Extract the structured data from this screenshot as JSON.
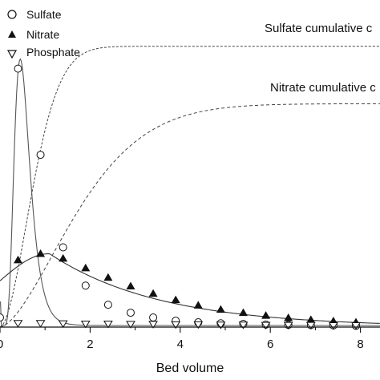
{
  "chart_data": {
    "type": "scatter",
    "xlabel": "Bed volume",
    "ylabel": "",
    "xlim": [
      0,
      8.5
    ],
    "ylim": [
      0,
      1.0
    ],
    "grid": false,
    "x_ticks": [
      "0",
      "2",
      "4",
      "6",
      "8"
    ],
    "legend_position": "top-left",
    "series": [
      {
        "name": "Sulfate",
        "marker": "open-circle",
        "x": [
          0.0,
          0.4,
          0.9,
          1.4,
          1.9,
          2.4,
          2.9,
          3.4,
          3.9,
          4.4,
          4.9,
          5.4,
          5.9,
          6.4,
          6.9,
          7.4,
          7.9,
          8.4
        ],
        "y": [
          0.03,
          0.81,
          0.54,
          0.25,
          0.13,
          0.07,
          0.045,
          0.03,
          0.02,
          0.015,
          0.012,
          0.01,
          0.008,
          0.007,
          0.006,
          0.005,
          0.004,
          0.004
        ]
      },
      {
        "name": "Nitrate",
        "marker": "filled-triangle-up",
        "x": [
          0.4,
          0.9,
          1.4,
          1.9,
          2.4,
          2.9,
          3.4,
          3.9,
          4.4,
          4.9,
          5.4,
          5.9,
          6.4,
          6.9,
          7.4,
          7.9,
          8.4
        ],
        "y": [
          0.21,
          0.23,
          0.215,
          0.185,
          0.155,
          0.128,
          0.105,
          0.085,
          0.068,
          0.055,
          0.045,
          0.036,
          0.029,
          0.023,
          0.019,
          0.015,
          0.012
        ]
      },
      {
        "name": "Phosphate",
        "marker": "open-triangle-down",
        "x": [
          0.4,
          0.9,
          1.4,
          1.9,
          2.4,
          2.9,
          3.4,
          3.9,
          4.4,
          4.9,
          5.4,
          5.9,
          6.4,
          6.9,
          7.4,
          7.9,
          8.4
        ],
        "y": [
          0.012,
          0.012,
          0.011,
          0.01,
          0.01,
          0.009,
          0.009,
          0.008,
          0.008,
          0.007,
          0.007,
          0.006,
          0.006,
          0.006,
          0.005,
          0.005,
          0.005
        ]
      }
    ],
    "annotations": [
      {
        "text": "Sulfate cumulative c",
        "curve": "sulfate-cumulative"
      },
      {
        "text": "Nitrate cumulative c",
        "curve": "nitrate-cumulative"
      }
    ]
  },
  "colors": {
    "ink": "#111111",
    "sulfate_fit": "#555555",
    "nitrate_fit": "#333333",
    "cumulative": "#444444"
  }
}
